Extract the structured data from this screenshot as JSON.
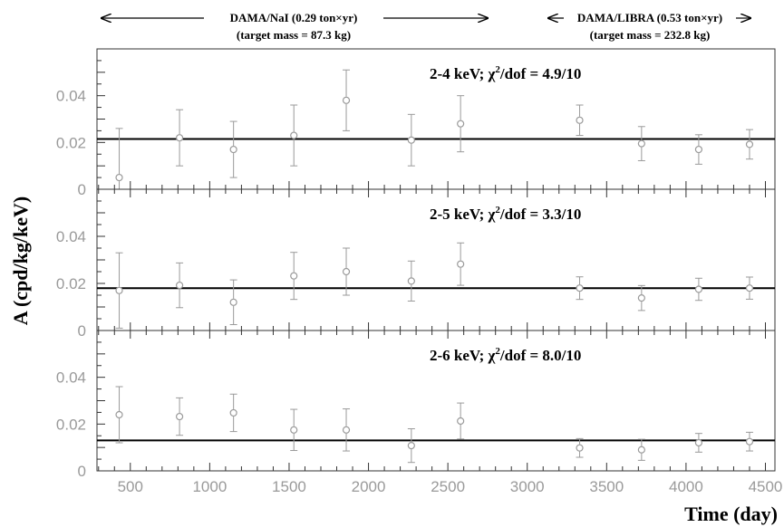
{
  "header": {
    "nai_label": "DAMA/NaI (0.29 ton×yr)",
    "nai_mass": "(target mass = 87.3 kg)",
    "libra_label": "DAMA/LIBRA (0.53 ton×yr)",
    "libra_mass": "(target mass = 232.8 kg)"
  },
  "chart_data": {
    "type": "scatter",
    "xlabel": "Time (day)",
    "ylabel": "A (cpd/kg/keV)",
    "xlim": [
      290,
      4560
    ],
    "ylim": [
      0,
      0.06
    ],
    "xticks": [
      500,
      1000,
      1500,
      2000,
      2500,
      3000,
      3500,
      4000,
      4500
    ],
    "xtick_labels": [
      "500",
      "1000",
      "1500",
      "2000",
      "2500",
      "3000",
      "3500",
      "4000",
      "4500"
    ],
    "yticks": [
      0,
      0.02,
      0.04
    ],
    "ytick_labels": [
      "0",
      "0.02",
      "0.04"
    ],
    "panels": [
      {
        "annotation": {
          "prefix": "2-4 keV; χ",
          "sup": "2",
          "suffix": "/dof = 4.9/10"
        },
        "fit": 0.0215,
        "x": [
          430,
          810,
          1150,
          1530,
          1860,
          2270,
          2580,
          3330,
          3720,
          4080,
          4400
        ],
        "y": [
          0.005,
          0.022,
          0.017,
          0.023,
          0.038,
          0.021,
          0.028,
          0.0295,
          0.0195,
          0.017,
          0.0192
        ],
        "err": [
          0.021,
          0.012,
          0.012,
          0.013,
          0.013,
          0.011,
          0.012,
          0.0065,
          0.0073,
          0.0063,
          0.0063
        ]
      },
      {
        "annotation": {
          "prefix": "2-5 keV; χ",
          "sup": "2",
          "suffix": "/dof = 3.3/10"
        },
        "fit": 0.018,
        "x": [
          430,
          810,
          1150,
          1530,
          1860,
          2270,
          2580,
          3330,
          3720,
          4080,
          4400
        ],
        "y": [
          0.017,
          0.0192,
          0.012,
          0.0232,
          0.025,
          0.021,
          0.0282,
          0.018,
          0.0138,
          0.0175,
          0.018
        ],
        "err": [
          0.016,
          0.0095,
          0.0095,
          0.01,
          0.01,
          0.0085,
          0.009,
          0.0048,
          0.0053,
          0.0047,
          0.0047
        ]
      },
      {
        "annotation": {
          "prefix": "2-6 keV; χ",
          "sup": "2",
          "suffix": "/dof = 8.0/10"
        },
        "fit": 0.013,
        "x": [
          430,
          810,
          1150,
          1530,
          1860,
          2270,
          2580,
          3330,
          3720,
          4080,
          4400
        ],
        "y": [
          0.024,
          0.0232,
          0.0248,
          0.0175,
          0.0175,
          0.0108,
          0.0213,
          0.0098,
          0.009,
          0.012,
          0.0125
        ],
        "err": [
          0.012,
          0.008,
          0.008,
          0.0088,
          0.009,
          0.0072,
          0.0077,
          0.004,
          0.0045,
          0.004,
          0.004
        ]
      }
    ],
    "colors": {
      "points": "#9a9a9a",
      "fit": "#000000",
      "frame": "#333333"
    }
  }
}
